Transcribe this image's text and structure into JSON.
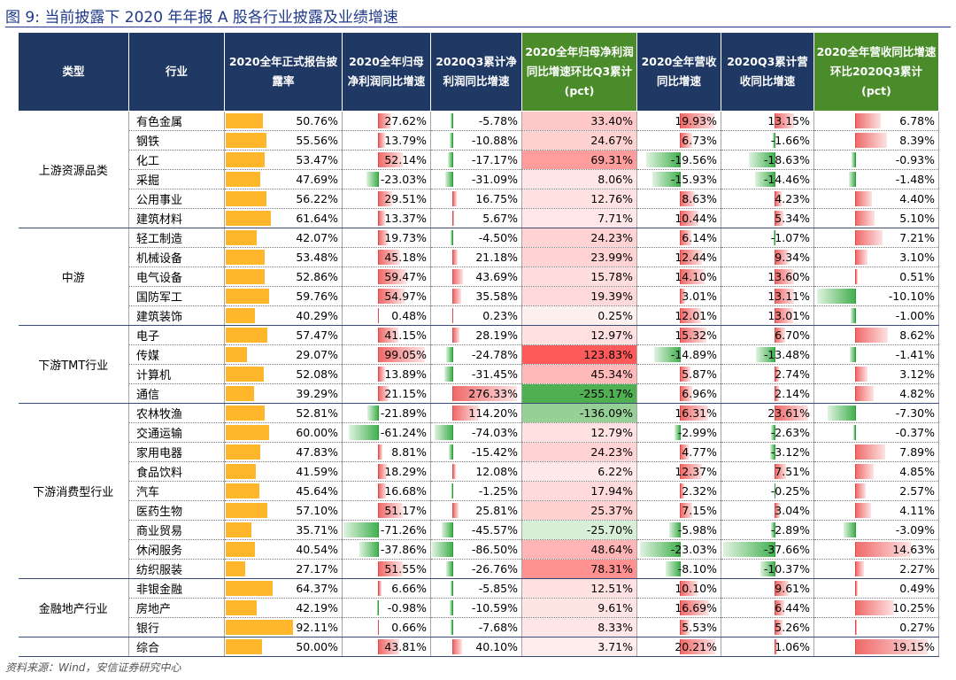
{
  "title": "图 9:  当前披露下 2020 年年报 A 股各行业披露及业绩增速",
  "source": "资料来源：Wind，安信证券研究中心",
  "headers": [
    "类型",
    "行业",
    "2020全年正式报告披露率",
    "2020全年归母净利润同比增速",
    "2020Q3累计净利润同比增速",
    "2020全年归母净利润同比增速环比Q3累计(pct)",
    "2020全年营收同比增速",
    "2020Q3累计营收同比增速",
    "2020全年营收同比增速环比2020Q3累计(pct)"
  ],
  "groups": [
    {
      "name": "上游资源品类",
      "rows": [
        {
          "industry": "有色金属",
          "vals": [
            "50.76%",
            "27.62%",
            "-5.78%",
            "33.40%",
            "19.93%",
            "13.15%",
            "6.78%"
          ]
        },
        {
          "industry": "钢铁",
          "vals": [
            "55.56%",
            "13.79%",
            "-10.88%",
            "24.67%",
            "6.73%",
            "-1.66%",
            "8.39%"
          ]
        },
        {
          "industry": "化工",
          "vals": [
            "53.47%",
            "52.14%",
            "-17.17%",
            "69.31%",
            "-19.56%",
            "-18.63%",
            "-0.93%"
          ]
        },
        {
          "industry": "采掘",
          "vals": [
            "47.69%",
            "-23.03%",
            "-31.09%",
            "8.06%",
            "-15.93%",
            "-14.46%",
            "-1.48%"
          ]
        },
        {
          "industry": "公用事业",
          "vals": [
            "56.22%",
            "29.51%",
            "16.75%",
            "12.76%",
            "8.63%",
            "4.23%",
            "4.40%"
          ]
        },
        {
          "industry": "建筑材料",
          "vals": [
            "61.64%",
            "13.37%",
            "5.67%",
            "7.71%",
            "10.44%",
            "5.34%",
            "5.10%"
          ]
        }
      ]
    },
    {
      "name": "中游",
      "rows": [
        {
          "industry": "轻工制造",
          "vals": [
            "42.07%",
            "19.73%",
            "-4.50%",
            "24.23%",
            "6.14%",
            "-1.07%",
            "7.21%"
          ]
        },
        {
          "industry": "机械设备",
          "vals": [
            "53.48%",
            "45.18%",
            "21.18%",
            "23.99%",
            "12.44%",
            "9.34%",
            "3.10%"
          ]
        },
        {
          "industry": "电气设备",
          "vals": [
            "52.86%",
            "59.47%",
            "43.69%",
            "15.78%",
            "14.10%",
            "13.60%",
            "0.51%"
          ]
        },
        {
          "industry": "国防军工",
          "vals": [
            "59.76%",
            "54.97%",
            "35.58%",
            "19.39%",
            "3.01%",
            "13.11%",
            "-10.10%"
          ]
        },
        {
          "industry": "建筑装饰",
          "vals": [
            "40.29%",
            "0.48%",
            "0.23%",
            "0.25%",
            "12.01%",
            "13.01%",
            "-1.00%"
          ]
        }
      ]
    },
    {
      "name": "下游TMT行业",
      "rows": [
        {
          "industry": "电子",
          "vals": [
            "57.47%",
            "41.15%",
            "28.19%",
            "12.97%",
            "15.32%",
            "6.70%",
            "8.62%"
          ]
        },
        {
          "industry": "传媒",
          "vals": [
            "29.07%",
            "99.05%",
            "-24.78%",
            "123.83%",
            "-14.89%",
            "-13.48%",
            "-1.41%"
          ]
        },
        {
          "industry": "计算机",
          "vals": [
            "52.08%",
            "13.89%",
            "-31.45%",
            "45.34%",
            "5.87%",
            "2.74%",
            "3.12%"
          ]
        },
        {
          "industry": "通信",
          "vals": [
            "39.29%",
            "21.15%",
            "276.33%",
            "-255.17%",
            "6.96%",
            "2.14%",
            "4.82%"
          ]
        }
      ]
    },
    {
      "name": "下游消费型行业",
      "rows": [
        {
          "industry": "农林牧渔",
          "vals": [
            "52.81%",
            "-21.89%",
            "114.20%",
            "-136.09%",
            "16.31%",
            "23.61%",
            "-7.30%"
          ]
        },
        {
          "industry": "交通运输",
          "vals": [
            "60.00%",
            "-61.24%",
            "-74.03%",
            "12.79%",
            "-2.99%",
            "-2.63%",
            "-0.37%"
          ]
        },
        {
          "industry": "家用电器",
          "vals": [
            "47.83%",
            "8.81%",
            "-15.42%",
            "24.23%",
            "4.77%",
            "-3.12%",
            "7.89%"
          ]
        },
        {
          "industry": "食品饮料",
          "vals": [
            "41.59%",
            "18.29%",
            "12.08%",
            "6.22%",
            "12.37%",
            "7.51%",
            "4.85%"
          ]
        },
        {
          "industry": "汽车",
          "vals": [
            "45.64%",
            "16.68%",
            "-1.25%",
            "17.94%",
            "2.32%",
            "-0.25%",
            "2.57%"
          ]
        },
        {
          "industry": "医药生物",
          "vals": [
            "57.10%",
            "51.17%",
            "25.81%",
            "25.37%",
            "7.15%",
            "3.04%",
            "4.11%"
          ]
        },
        {
          "industry": "商业贸易",
          "vals": [
            "35.71%",
            "-71.26%",
            "-45.57%",
            "-25.70%",
            "-5.98%",
            "-2.89%",
            "-3.09%"
          ]
        },
        {
          "industry": "休闲服务",
          "vals": [
            "40.54%",
            "-37.86%",
            "-86.50%",
            "48.64%",
            "-23.03%",
            "-37.66%",
            "14.63%"
          ]
        },
        {
          "industry": "纺织服装",
          "vals": [
            "27.17%",
            "51.55%",
            "-26.76%",
            "78.31%",
            "-8.10%",
            "-10.37%",
            "2.27%"
          ]
        }
      ]
    },
    {
      "name": "金融地产行业",
      "rows": [
        {
          "industry": "非银金融",
          "vals": [
            "64.37%",
            "6.66%",
            "-5.85%",
            "12.51%",
            "10.10%",
            "9.61%",
            "0.49%"
          ]
        },
        {
          "industry": "房地产",
          "vals": [
            "42.19%",
            "-0.98%",
            "-10.59%",
            "9.61%",
            "16.69%",
            "6.44%",
            "10.25%"
          ]
        },
        {
          "industry": "银行",
          "vals": [
            "92.11%",
            "0.66%",
            "-7.68%",
            "8.33%",
            "5.53%",
            "5.26%",
            "0.27%"
          ]
        }
      ]
    },
    {
      "name": "",
      "rows": [
        {
          "industry": "综合",
          "vals": [
            "50.00%",
            "43.81%",
            "40.10%",
            "3.71%",
            "20.21%",
            "1.06%",
            "19.15%"
          ]
        }
      ]
    }
  ],
  "colors": {
    "header_blue": "#1f3864",
    "header_green": "#4a8c2a",
    "bar_orange": "#ffb62a",
    "bar_red": "#f06a6a",
    "bar_green": "#43b050",
    "title_blue": "#1f3a8a"
  }
}
